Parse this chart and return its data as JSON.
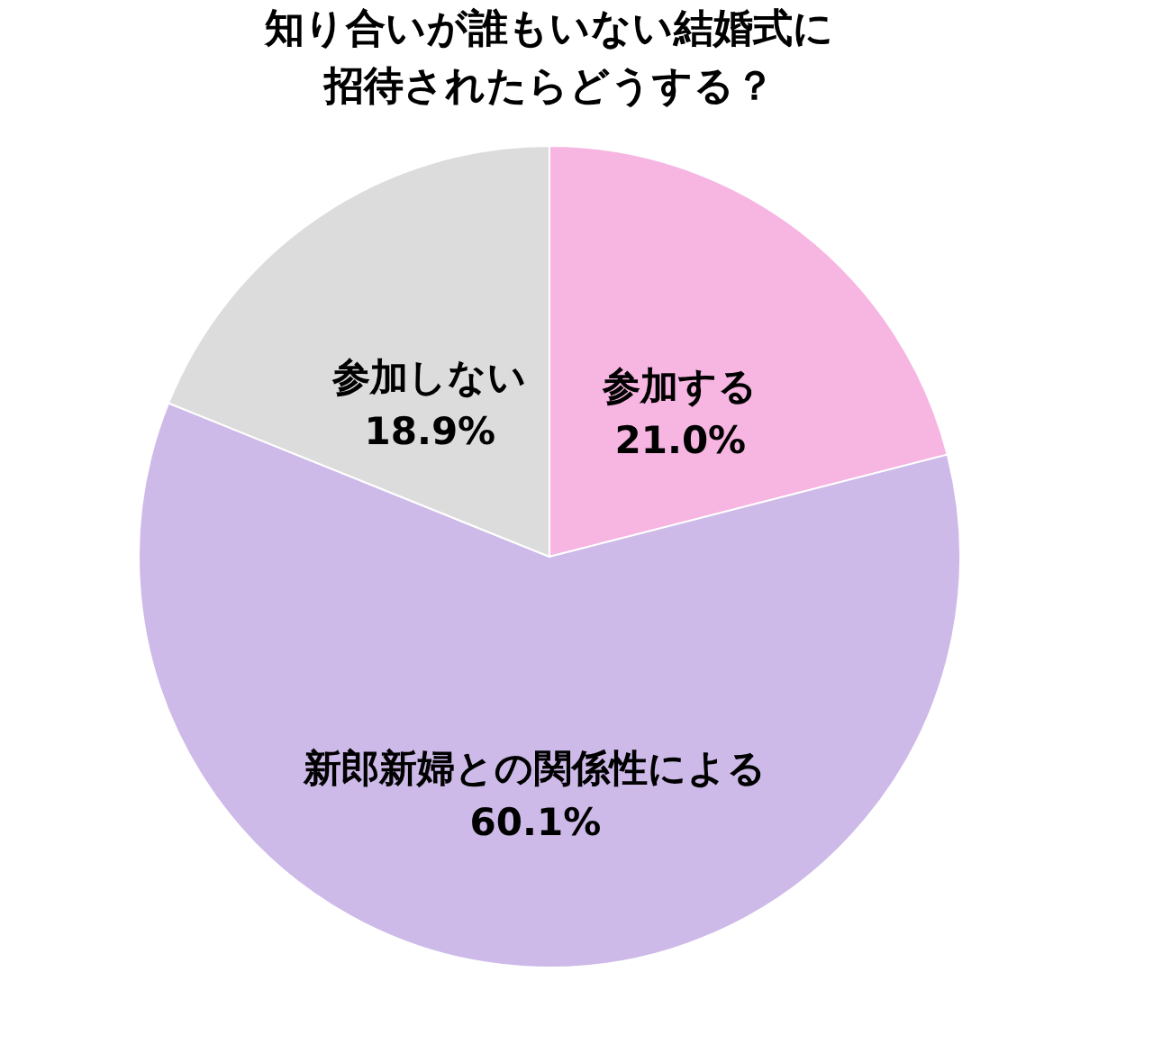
{
  "chart_data": {
    "type": "pie",
    "title": [
      "知り合いが誰もいない結婚式に",
      "招待されたらどうする？"
    ],
    "categories": [
      "参加する",
      "新郎新婦との関係性による",
      "参加しない"
    ],
    "values": [
      21.0,
      60.1,
      18.9
    ],
    "colors": [
      "#f7b5e2",
      "#cdbae8",
      "#dcdcdc"
    ],
    "value_labels": [
      "21.0%",
      "60.1%",
      "18.9%"
    ],
    "legend": false
  }
}
